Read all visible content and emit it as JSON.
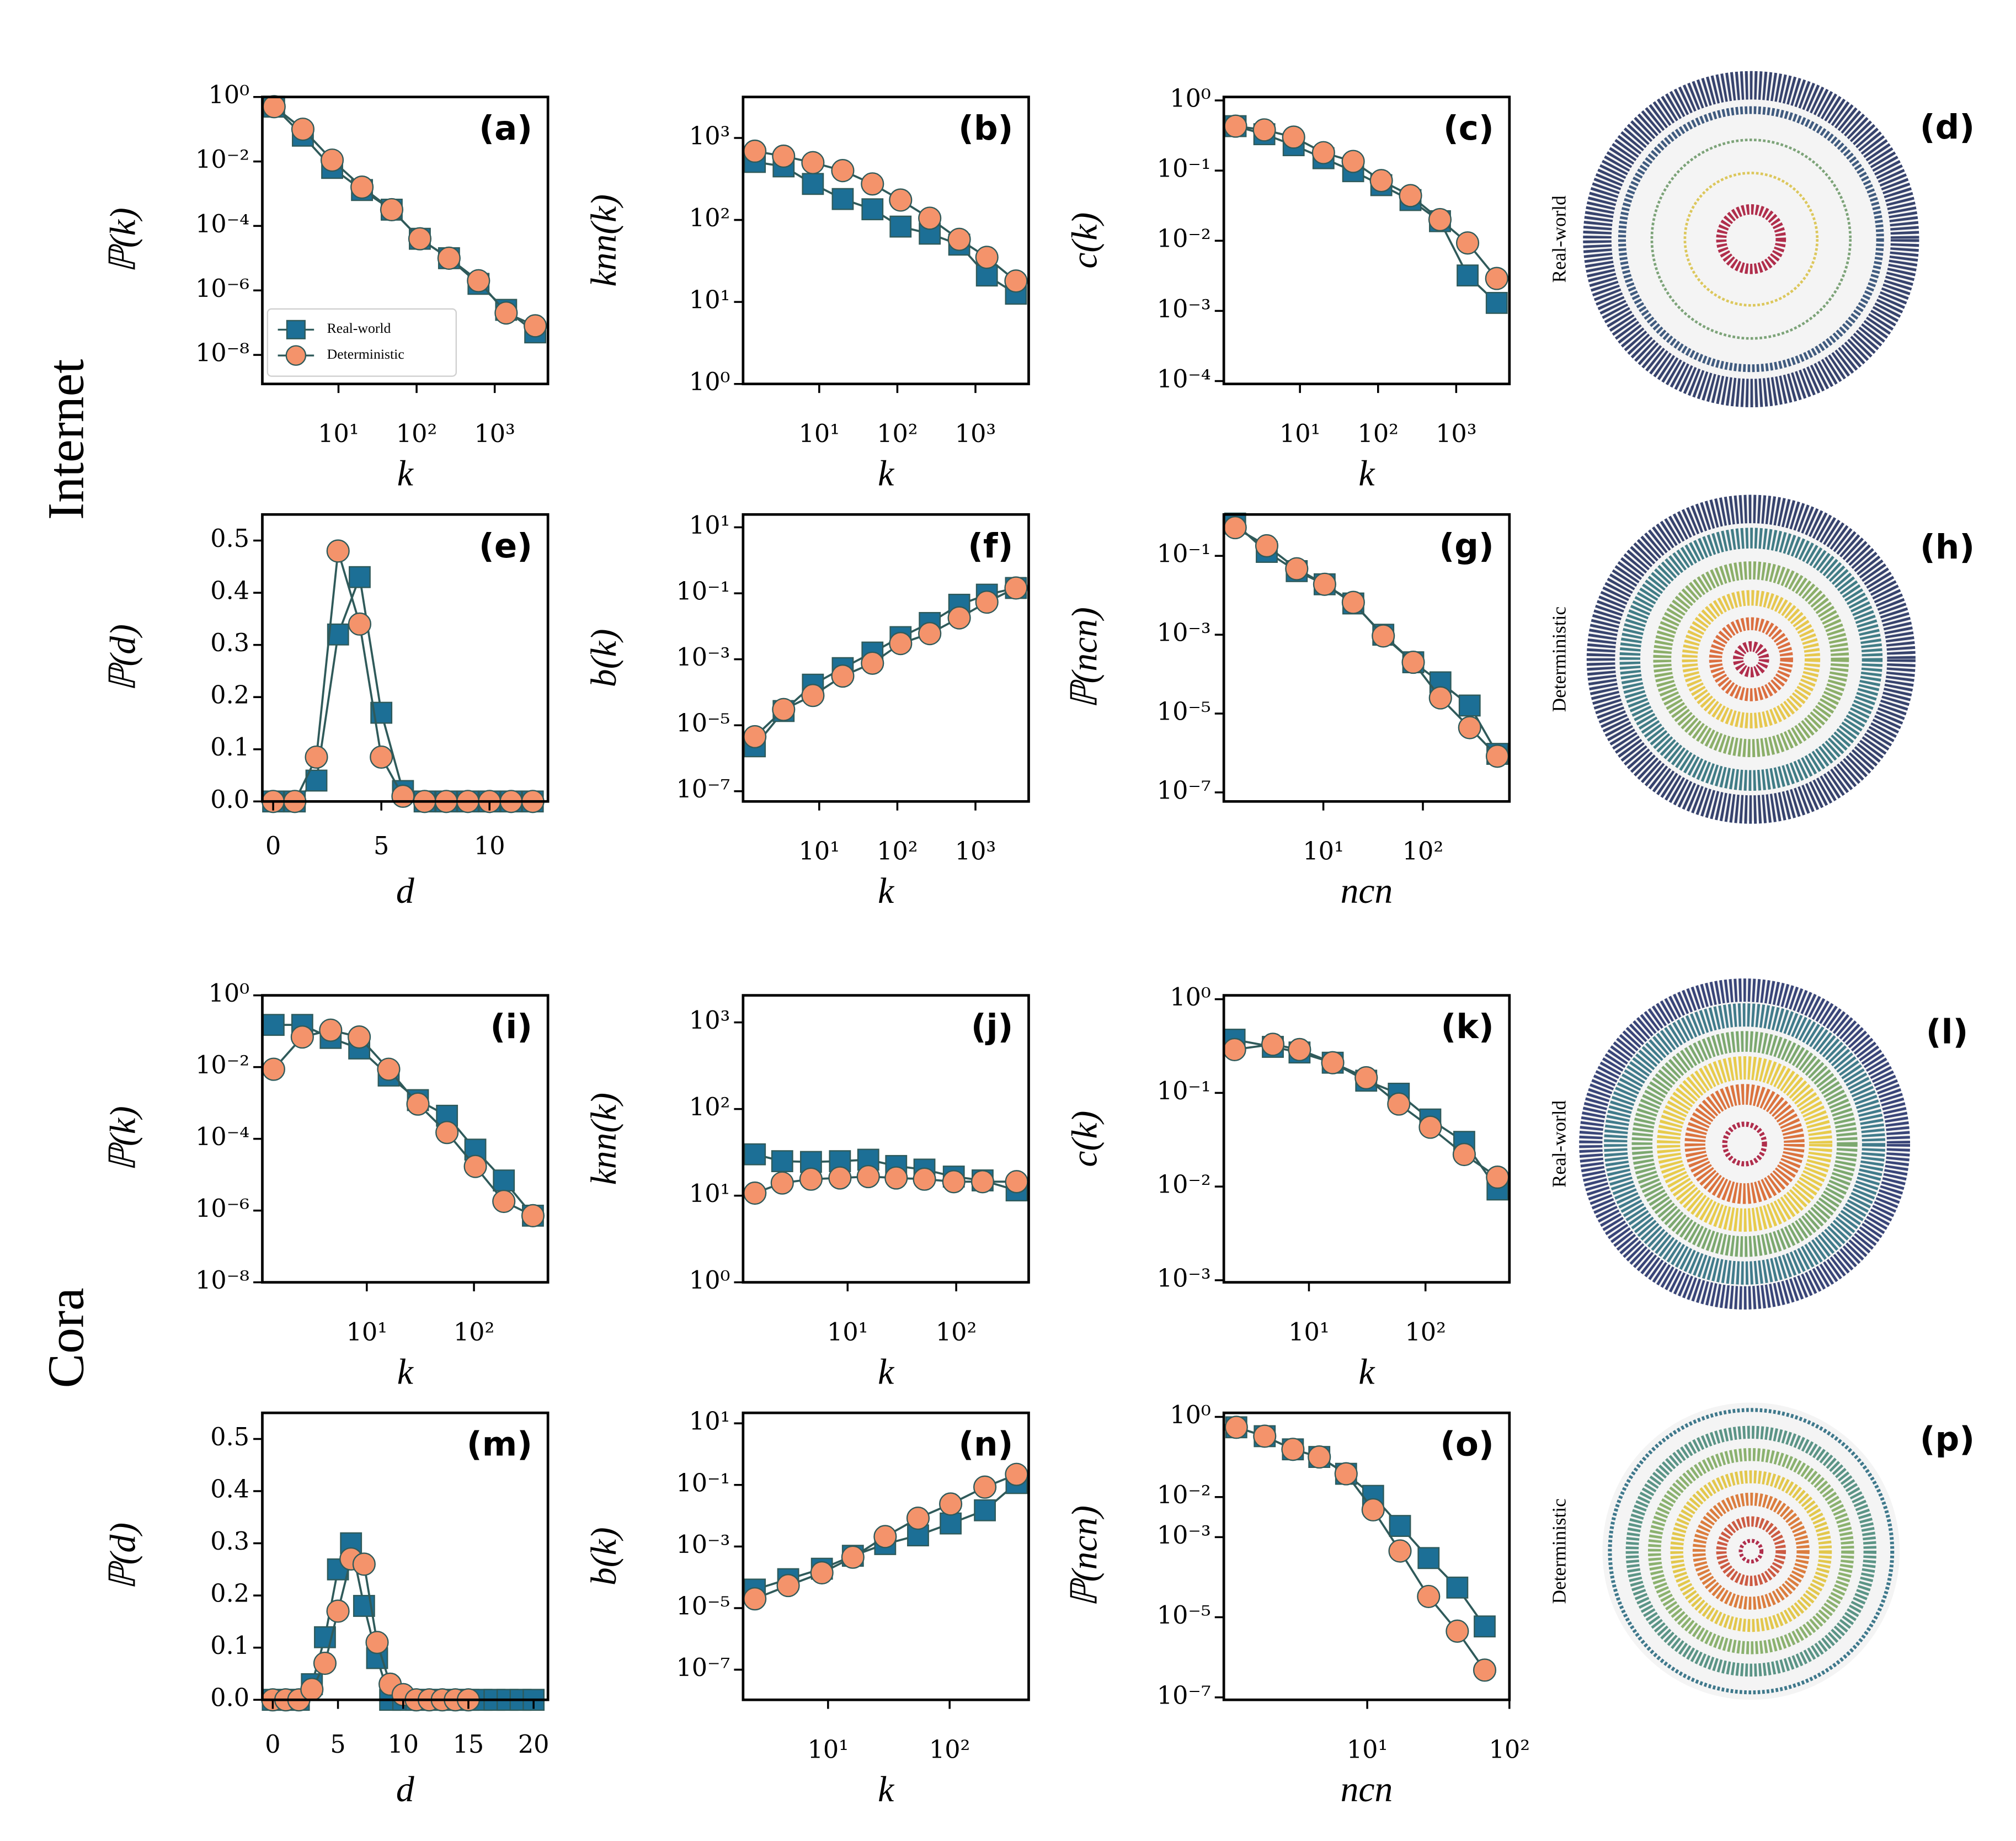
{
  "row_labels": [
    "Internet",
    "Cora"
  ],
  "networks": [
    {
      "panel": "(d)",
      "caption": "Real-world"
    },
    {
      "panel": "(h)",
      "caption": "Deterministic"
    },
    {
      "panel": "(l)",
      "caption": "Real-world"
    },
    {
      "panel": "(p)",
      "caption": "Deterministic"
    }
  ],
  "chart_data": [
    {
      "type": "line",
      "panel": "(a)",
      "xlabel": "k",
      "ylabel": "ℙ(k)",
      "xscale": "log",
      "yscale": "log",
      "xlim": [
        1.06,
        4800
      ],
      "ylim": [
        1.26e-09,
        1
      ],
      "xticks": [
        {
          "value": 10,
          "label": "10¹"
        },
        {
          "value": 100,
          "label": "10²"
        },
        {
          "value": 1000,
          "label": "10³"
        }
      ],
      "yticks": [
        {
          "value": 1,
          "label": "10⁰"
        },
        {
          "value": 0.01,
          "label": "10⁻²"
        },
        {
          "value": 0.0001,
          "label": "10⁻⁴"
        },
        {
          "value": 1e-06,
          "label": "10⁻⁶"
        },
        {
          "value": 1e-08,
          "label": "10⁻⁸"
        }
      ],
      "legend": "lower left",
      "x": [
        1.5,
        3.5,
        8.3,
        20,
        48,
        110,
        260,
        620,
        1400,
        3300
      ],
      "series": [
        {
          "name": "Real-world",
          "color": "#1c6f96",
          "marker": "square",
          "values": [
            0.5,
            0.063,
            0.0063,
            0.0013,
            0.00032,
            4e-05,
            1e-05,
            1.6e-06,
            2.5e-07,
            5e-08
          ]
        },
        {
          "name": "Deterministic",
          "color": "#f4936b",
          "marker": "circle",
          "values": [
            0.5,
            0.1,
            0.011,
            0.0016,
            0.00032,
            4e-05,
            1e-05,
            2e-06,
            2e-07,
            8e-08
          ]
        }
      ]
    },
    {
      "type": "line",
      "panel": "(b)",
      "xlabel": "k",
      "ylabel": "knn(k)",
      "xscale": "log",
      "yscale": "log",
      "xlim": [
        1.06,
        4800
      ],
      "ylim": [
        1,
        3162
      ],
      "xticks": [
        {
          "value": 10,
          "label": "10¹"
        },
        {
          "value": 100,
          "label": "10²"
        },
        {
          "value": 1000,
          "label": "10³"
        }
      ],
      "yticks": [
        {
          "value": 1,
          "label": "10⁰"
        },
        {
          "value": 10,
          "label": "10¹"
        },
        {
          "value": 100,
          "label": "10²"
        },
        {
          "value": 1000,
          "label": "10³"
        }
      ],
      "x": [
        1.5,
        3.5,
        8.3,
        20,
        48,
        110,
        260,
        620,
        1400,
        3300
      ],
      "series": [
        {
          "color": "#1c6f96",
          "marker": "square",
          "values": [
            510,
            450,
            275,
            180,
            135,
            83,
            68,
            50,
            21,
            12.6
          ]
        },
        {
          "color": "#f4936b",
          "marker": "circle",
          "values": [
            690,
            600,
            500,
            400,
            275,
            175,
            105,
            58,
            35,
            18
          ]
        }
      ]
    },
    {
      "type": "line",
      "panel": "(c)",
      "xlabel": "k",
      "ylabel": "c(k)",
      "xscale": "log",
      "yscale": "log",
      "xlim": [
        1.06,
        4800
      ],
      "ylim": [
        9.1e-05,
        1.12
      ],
      "xticks": [
        {
          "value": 10,
          "label": "10¹"
        },
        {
          "value": 100,
          "label": "10²"
        },
        {
          "value": 1000,
          "label": "10³"
        }
      ],
      "yticks": [
        {
          "value": 1,
          "label": "10⁰"
        },
        {
          "value": 0.1,
          "label": "10⁻¹"
        },
        {
          "value": 0.01,
          "label": "10⁻²"
        },
        {
          "value": 0.001,
          "label": "10⁻³"
        },
        {
          "value": 0.0001,
          "label": "10⁻⁴"
        }
      ],
      "x": [
        1.5,
        3.5,
        8.3,
        20,
        48,
        110,
        260,
        620,
        1400,
        3300
      ],
      "series": [
        {
          "color": "#1c6f96",
          "marker": "square",
          "values": [
            0.43,
            0.33,
            0.23,
            0.15,
            0.098,
            0.062,
            0.038,
            0.019,
            0.0032,
            0.0013
          ]
        },
        {
          "color": "#f4936b",
          "marker": "circle",
          "values": [
            0.43,
            0.38,
            0.3,
            0.18,
            0.135,
            0.072,
            0.044,
            0.02,
            0.0093,
            0.0029
          ]
        }
      ]
    },
    {
      "type": "line",
      "panel": "(e)",
      "xlabel": "d",
      "ylabel": "ℙ(d)",
      "xlim": [
        -0.5,
        12.7
      ],
      "ylim": [
        0,
        0.55
      ],
      "xticks": [
        0,
        5,
        10
      ],
      "yticks": [
        {
          "value": 0,
          "label": "0.0"
        },
        0.1,
        0.2,
        0.3,
        0.4,
        0.5
      ],
      "x": [
        0,
        1,
        2,
        3,
        4,
        5,
        6,
        7,
        8,
        9,
        10,
        11,
        12
      ],
      "series": [
        {
          "color": "#1c6f96",
          "marker": "square",
          "values": [
            0,
            0,
            0.04,
            0.32,
            0.43,
            0.17,
            0.02,
            0,
            0,
            0,
            0,
            0,
            0
          ]
        },
        {
          "color": "#f4936b",
          "marker": "circle",
          "values": [
            0,
            0,
            0.085,
            0.48,
            0.34,
            0.085,
            0.01,
            0,
            0,
            0,
            0,
            0,
            0
          ]
        }
      ]
    },
    {
      "type": "line",
      "panel": "(f)",
      "xlabel": "k",
      "ylabel": "b(k)",
      "xscale": "log",
      "yscale": "log",
      "xlim": [
        1.06,
        4800
      ],
      "ylim": [
        4.9e-08,
        24.5
      ],
      "xticks": [
        {
          "value": 10,
          "label": "10¹"
        },
        {
          "value": 100,
          "label": "10²"
        },
        {
          "value": 1000,
          "label": "10³"
        }
      ],
      "yticks": [
        {
          "value": 10,
          "label": "10¹"
        },
        {
          "value": 0.1,
          "label": "10⁻¹"
        },
        {
          "value": 0.001,
          "label": "10⁻³"
        },
        {
          "value": 1e-05,
          "label": "10⁻⁵"
        },
        {
          "value": 1e-07,
          "label": "10⁻⁷"
        }
      ],
      "x": [
        1.5,
        3.5,
        8.3,
        20,
        48,
        110,
        260,
        620,
        1400,
        3300
      ],
      "series": [
        {
          "color": "#1c6f96",
          "marker": "square",
          "values": [
            2.3e-06,
            2.7e-05,
            0.00017,
            0.00054,
            0.0016,
            0.0047,
            0.0126,
            0.045,
            0.091,
            0.145
          ]
        },
        {
          "color": "#f4936b",
          "marker": "circle",
          "values": [
            4.5e-06,
            3e-05,
            8e-05,
            0.00031,
            0.00076,
            0.003,
            0.006,
            0.018,
            0.054,
            0.145
          ]
        }
      ]
    },
    {
      "type": "line",
      "panel": "(g)",
      "xlabel": "ncn",
      "ylabel": "ℙ(ncn)",
      "xscale": "log",
      "yscale": "log",
      "xlim": [
        1,
        740
      ],
      "ylim": [
        5.9e-08,
        1.12
      ],
      "xticks": [
        {
          "value": 10,
          "label": "10¹"
        },
        {
          "value": 100,
          "label": "10²"
        }
      ],
      "yticks": [
        {
          "value": 0.1,
          "label": "10⁻¹"
        },
        {
          "value": 0.001,
          "label": "10⁻³"
        },
        {
          "value": 1e-05,
          "label": "10⁻⁵"
        },
        {
          "value": 1e-07,
          "label": "10⁻⁷"
        }
      ],
      "x": [
        1.3,
        2.7,
        5.4,
        10.3,
        20,
        40,
        80,
        150,
        295,
        560
      ],
      "series": [
        {
          "color": "#1c6f96",
          "marker": "square",
          "values": [
            0.66,
            0.126,
            0.041,
            0.019,
            0.0062,
            0.001,
            0.0002,
            6.2e-05,
            1.6e-05,
            9.5e-07
          ]
        },
        {
          "color": "#f4936b",
          "marker": "circle",
          "values": [
            0.52,
            0.18,
            0.047,
            0.019,
            0.0066,
            0.00093,
            0.0002,
            2.5e-05,
            4.4e-06,
            8.3e-07
          ]
        }
      ]
    },
    {
      "type": "line",
      "panel": "(i)",
      "xlabel": "k",
      "ylabel": "ℙ(k)",
      "xscale": "log",
      "yscale": "log",
      "xlim": [
        1.06,
        490
      ],
      "ylim": [
        1e-08,
        1
      ],
      "xticks": [
        {
          "value": 10,
          "label": "10¹"
        },
        {
          "value": 100,
          "label": "10²"
        }
      ],
      "yticks": [
        {
          "value": 1,
          "label": "10⁰"
        },
        {
          "value": 0.01,
          "label": "10⁻²"
        },
        {
          "value": 0.0001,
          "label": "10⁻⁴"
        },
        {
          "value": 1e-06,
          "label": "10⁻⁶"
        },
        {
          "value": 1e-08,
          "label": "10⁻⁸"
        }
      ],
      "x": [
        1.35,
        2.5,
        4.6,
        8.5,
        16,
        30,
        56,
        103,
        190,
        355
      ],
      "series": [
        {
          "color": "#1c6f96",
          "marker": "square",
          "values": [
            0.15,
            0.15,
            0.065,
            0.033,
            0.0058,
            0.0012,
            0.00044,
            5e-05,
            6.9e-06,
            7.2e-07
          ]
        },
        {
          "color": "#f4936b",
          "marker": "circle",
          "values": [
            0.0087,
            0.069,
            0.107,
            0.069,
            0.0087,
            0.00093,
            0.00015,
            1.7e-05,
            1.8e-06,
            7.2e-07
          ]
        }
      ]
    },
    {
      "type": "line",
      "panel": "(j)",
      "xlabel": "k",
      "ylabel": "knn(k)",
      "xscale": "log",
      "yscale": "log",
      "xlim": [
        1.09,
        465
      ],
      "ylim": [
        1,
        2050
      ],
      "xticks": [
        {
          "value": 10,
          "label": "10¹"
        },
        {
          "value": 100,
          "label": "10²"
        }
      ],
      "yticks": [
        {
          "value": 1,
          "label": "10⁰"
        },
        {
          "value": 10,
          "label": "10¹"
        },
        {
          "value": 100,
          "label": "10²"
        },
        {
          "value": 1000,
          "label": "10³"
        }
      ],
      "x": [
        1.4,
        2.5,
        4.6,
        8.5,
        15.5,
        28,
        51,
        95,
        175,
        360
      ],
      "series": [
        {
          "color": "#1c6f96",
          "marker": "square",
          "values": [
            30,
            25,
            24.5,
            25,
            26,
            22,
            20,
            16.6,
            15,
            11.5
          ]
        },
        {
          "color": "#f4936b",
          "marker": "circle",
          "values": [
            10.7,
            14,
            15.5,
            16,
            16.6,
            16,
            15.5,
            14.5,
            14.5,
            14.5
          ]
        }
      ]
    },
    {
      "type": "line",
      "panel": "(k)",
      "xlabel": "k",
      "ylabel": "c(k)",
      "xscale": "log",
      "yscale": "log",
      "xlim": [
        1.86,
        525
      ],
      "ylim": [
        0.00095,
        1.1
      ],
      "xticks": [
        {
          "value": 10,
          "label": "10¹"
        },
        {
          "value": 100,
          "label": "10²"
        }
      ],
      "yticks": [
        {
          "value": 1,
          "label": "10⁰"
        },
        {
          "value": 0.1,
          "label": "10⁻¹"
        },
        {
          "value": 0.01,
          "label": "10⁻²"
        },
        {
          "value": 0.001,
          "label": "10⁻³"
        }
      ],
      "x": [
        2.3,
        4.9,
        8.3,
        16,
        31,
        59,
        110,
        215,
        415
      ],
      "series": [
        {
          "color": "#1c6f96",
          "marker": "square",
          "values": [
            0.37,
            0.31,
            0.27,
            0.21,
            0.135,
            0.098,
            0.052,
            0.03,
            0.0093
          ]
        },
        {
          "color": "#f4936b",
          "marker": "circle",
          "values": [
            0.29,
            0.33,
            0.29,
            0.21,
            0.145,
            0.076,
            0.043,
            0.022,
            0.0126
          ]
        }
      ]
    },
    {
      "type": "line",
      "panel": "(m)",
      "xlabel": "d",
      "ylabel": "ℙ(d)",
      "xlim": [
        -0.8,
        21.1
      ],
      "ylim": [
        0,
        0.55
      ],
      "xticks": [
        0,
        5,
        10,
        15,
        20
      ],
      "yticks": [
        {
          "value": 0,
          "label": "0.0"
        },
        0.1,
        0.2,
        0.3,
        0.4,
        0.5
      ],
      "x": [
        0,
        1,
        2,
        3,
        4,
        5,
        6,
        7,
        8,
        9,
        10,
        11,
        12,
        13,
        14,
        15,
        16,
        17,
        18,
        19,
        20
      ],
      "series": [
        {
          "color": "#1c6f96",
          "marker": "square",
          "values": [
            0,
            0,
            0,
            0.03,
            0.12,
            0.25,
            0.3,
            0.18,
            0.08,
            0,
            0,
            0,
            0,
            0,
            0,
            0,
            0,
            0,
            0,
            0,
            0
          ]
        },
        {
          "color": "#f4936b",
          "marker": "circle",
          "values": [
            0,
            0,
            0,
            0.02,
            0.07,
            0.17,
            0.27,
            0.26,
            0.11,
            0.03,
            0.01,
            0,
            0,
            0,
            0,
            0,
            null,
            null,
            null,
            null,
            null
          ]
        }
      ]
    },
    {
      "type": "line",
      "panel": "(n)",
      "xlabel": "k",
      "ylabel": "b(k)",
      "xscale": "log",
      "yscale": "log",
      "xlim": [
        2,
        447
      ],
      "ylim": [
        1.05e-08,
        21.9
      ],
      "xticks": [
        {
          "value": 10,
          "label": "10¹"
        },
        {
          "value": 100,
          "label": "10²"
        }
      ],
      "yticks": [
        {
          "value": 10,
          "label": "10¹"
        },
        {
          "value": 0.1,
          "label": "10⁻¹"
        },
        {
          "value": 0.001,
          "label": "10⁻³"
        },
        {
          "value": 1e-05,
          "label": "10⁻⁵"
        },
        {
          "value": 1e-07,
          "label": "10⁻⁷"
        }
      ],
      "x": [
        2.5,
        4.7,
        8.9,
        16,
        29.5,
        55,
        102,
        195,
        355
      ],
      "series": [
        {
          "color": "#1c6f96",
          "marker": "square",
          "values": [
            4e-05,
            8.7e-05,
            0.00019,
            0.0005,
            0.0012,
            0.0023,
            0.0056,
            0.015,
            0.115
          ]
        },
        {
          "color": "#f4936b",
          "marker": "circle",
          "values": [
            2e-05,
            5.4e-05,
            0.00014,
            0.00045,
            0.0021,
            0.0083,
            0.024,
            0.085,
            0.22
          ]
        }
      ]
    },
    {
      "type": "line",
      "panel": "(o)",
      "xlabel": "ncn",
      "ylabel": "ℙ(ncn)",
      "xscale": "log",
      "yscale": "log",
      "xlim": [
        0.98,
        100
      ],
      "ylim": [
        8.7e-08,
        1.26
      ],
      "xticks": [
        {
          "value": 10,
          "label": "10¹"
        },
        {
          "value": 100,
          "label": "10²"
        }
      ],
      "yticks": [
        {
          "value": 1,
          "label": "10⁰"
        },
        {
          "value": 0.01,
          "label": "10⁻²"
        },
        {
          "value": 0.001,
          "label": "10⁻³"
        },
        {
          "value": 1e-05,
          "label": "10⁻⁵"
        },
        {
          "value": 1e-07,
          "label": "10⁻⁷"
        }
      ],
      "x": [
        1.2,
        1.9,
        3,
        4.6,
        7.1,
        11,
        17,
        27,
        43,
        67
      ],
      "series": [
        {
          "color": "#1c6f96",
          "marker": "square",
          "values": [
            0.55,
            0.33,
            0.155,
            0.1,
            0.038,
            0.0107,
            0.0019,
            0.0003,
            5.5e-05,
            5.9e-06
          ]
        },
        {
          "color": "#f4936b",
          "marker": "circle",
          "values": [
            0.55,
            0.33,
            0.155,
            0.1,
            0.038,
            0.0048,
            0.00045,
            3.3e-05,
            4.5e-06,
            4.8e-07
          ]
        }
      ]
    }
  ]
}
